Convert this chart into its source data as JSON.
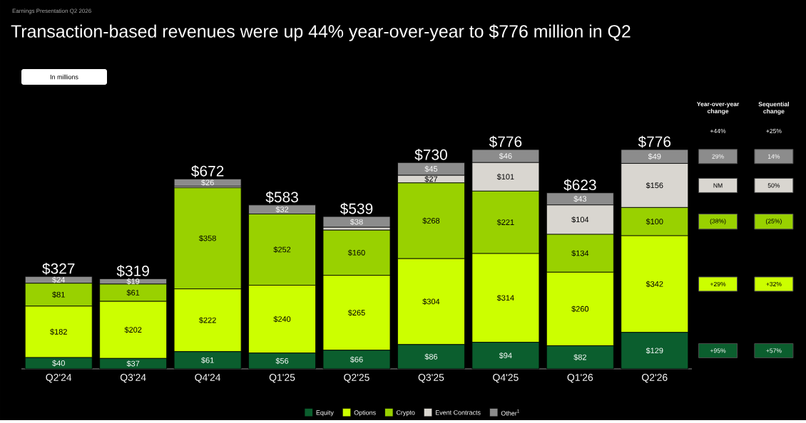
{
  "chart_data": {
    "type": "bar",
    "stacked": true,
    "subtitle": "Earnings Presentation Q2 2026",
    "title": "Transaction-based revenues were up 44% year-over-year to $776 million in Q2",
    "categories": [
      "Q2'24",
      "Q3'24",
      "Q4'24",
      "Q1'25",
      "Q2'25",
      "Q3'25",
      "Q4'25",
      "Q1'26",
      "Q2'26"
    ],
    "series": [
      {
        "name": "Equity",
        "color": "#0b5e2e",
        "values": [
          40,
          37,
          61,
          56,
          66,
          86,
          94,
          82,
          129
        ],
        "value_labels": [
          "$40",
          "$37",
          "$61",
          "$56",
          "$66",
          "$86",
          "$94",
          "$82",
          "$129"
        ]
      },
      {
        "name": "Options",
        "color": "#ccff00",
        "values": [
          182,
          202,
          222,
          240,
          265,
          304,
          314,
          260,
          342
        ],
        "value_labels": [
          "$182",
          "$202",
          "$222",
          "$240",
          "$265",
          "$304",
          "$314",
          "$260",
          "$342"
        ]
      },
      {
        "name": "Crypto",
        "color": "#99d100",
        "values": [
          81,
          61,
          358,
          252,
          160,
          268,
          221,
          134,
          100
        ],
        "value_labels": [
          "$81",
          "$61",
          "$358",
          "$252",
          "$160",
          "$268",
          "$221",
          "$134",
          "$100"
        ]
      },
      {
        "name": "Event Contracts",
        "color": "#d9d6d0",
        "values": [
          0,
          0,
          5,
          null,
          10,
          27,
          101,
          104,
          156
        ],
        "value_labels": [
          null,
          null,
          null,
          null,
          null,
          "$27",
          "$101",
          "$104",
          "$156"
        ]
      },
      {
        "name": "Other$^{1}$",
        "color": "#8c8c8c",
        "values": [
          24,
          19,
          26,
          32,
          38,
          45,
          46,
          43,
          49
        ],
        "value_labels": [
          "$24",
          "$19",
          "$26",
          "$32",
          "$38",
          "$45",
          "$46",
          "$43",
          "$49"
        ]
      }
    ],
    "totals": [
      "$327",
      "$319",
      "$672",
      "$583",
      "$539",
      "$730",
      "$776",
      "$623",
      "$776"
    ],
    "legend": "bottom",
    "annotations": [
      "In millions",
      "Year-over-year change",
      "Sequential change",
      "+44%",
      "+25%",
      "+95%",
      "+57%",
      "+29%",
      "+32%",
      "(38%)",
      "(25%)",
      "NM",
      "50%",
      "29%",
      "14%"
    ]
  }
}
